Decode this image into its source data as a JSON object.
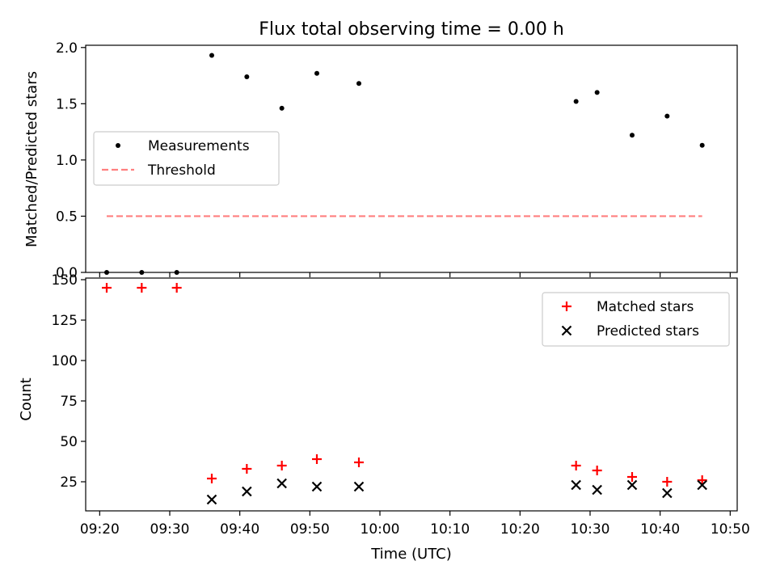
{
  "figure": {
    "title": "Flux total observing time = 0.00 h",
    "xlabel": "Time (UTC)"
  },
  "colors": {
    "measurements": "#000000",
    "threshold": "#ff7f7f",
    "matched": "#ff0000",
    "predicted": "#000000"
  },
  "chart_data": [
    {
      "type": "scatter",
      "ylabel": "Matched/Predicted stars",
      "xlim": [
        "09:18",
        "10:51"
      ],
      "ylim": [
        0,
        2.02
      ],
      "xticks": [
        "09:20",
        "09:30",
        "09:40",
        "09:50",
        "10:00",
        "10:10",
        "10:20",
        "10:30",
        "10:40",
        "10:50"
      ],
      "yticks": [
        0.0,
        0.5,
        1.0,
        1.5,
        2.0
      ],
      "ytick_labels": [
        "0.0",
        "0.5",
        "1.0",
        "1.5",
        "2.0"
      ],
      "legend": {
        "placement": "center-left",
        "entries": [
          "Measurements",
          "Threshold"
        ]
      },
      "series": [
        {
          "name": "Measurements",
          "kind": "scatter",
          "x": [
            "09:21",
            "09:26",
            "09:31",
            "09:36",
            "09:41",
            "09:46",
            "09:51",
            "09:57",
            "10:28",
            "10:31",
            "10:36",
            "10:41",
            "10:46"
          ],
          "y": [
            0.0,
            0.0,
            0.0,
            1.93,
            1.74,
            1.46,
            1.77,
            1.68,
            1.52,
            1.6,
            1.22,
            1.39,
            1.13
          ]
        },
        {
          "name": "Threshold",
          "kind": "line",
          "style": "dashed",
          "x": [
            "09:21",
            "10:46"
          ],
          "y": [
            0.5,
            0.5
          ]
        }
      ]
    },
    {
      "type": "scatter",
      "ylabel": "Count",
      "xlim": [
        "09:18",
        "10:51"
      ],
      "ylim": [
        7,
        151
      ],
      "xticks": [
        "09:20",
        "09:30",
        "09:40",
        "09:50",
        "10:00",
        "10:10",
        "10:20",
        "10:30",
        "10:40",
        "10:50"
      ],
      "yticks": [
        25,
        50,
        75,
        100,
        125,
        150
      ],
      "ytick_labels": [
        "25",
        "50",
        "75",
        "100",
        "125",
        "150"
      ],
      "legend": {
        "placement": "top-right",
        "entries": [
          "Matched stars",
          "Predicted stars"
        ]
      },
      "series": [
        {
          "name": "Matched stars",
          "marker": "plus",
          "x": [
            "09:21",
            "09:26",
            "09:31",
            "09:36",
            "09:41",
            "09:46",
            "09:51",
            "09:57",
            "10:28",
            "10:31",
            "10:36",
            "10:41",
            "10:46"
          ],
          "y": [
            145,
            145,
            145,
            27,
            33,
            35,
            39,
            37,
            35,
            32,
            28,
            25,
            26
          ]
        },
        {
          "name": "Predicted stars",
          "marker": "x",
          "x": [
            "09:36",
            "09:41",
            "09:46",
            "09:51",
            "09:57",
            "10:28",
            "10:31",
            "10:36",
            "10:41",
            "10:46"
          ],
          "y": [
            14,
            19,
            24,
            22,
            22,
            23,
            20,
            23,
            18,
            23
          ]
        }
      ]
    }
  ]
}
